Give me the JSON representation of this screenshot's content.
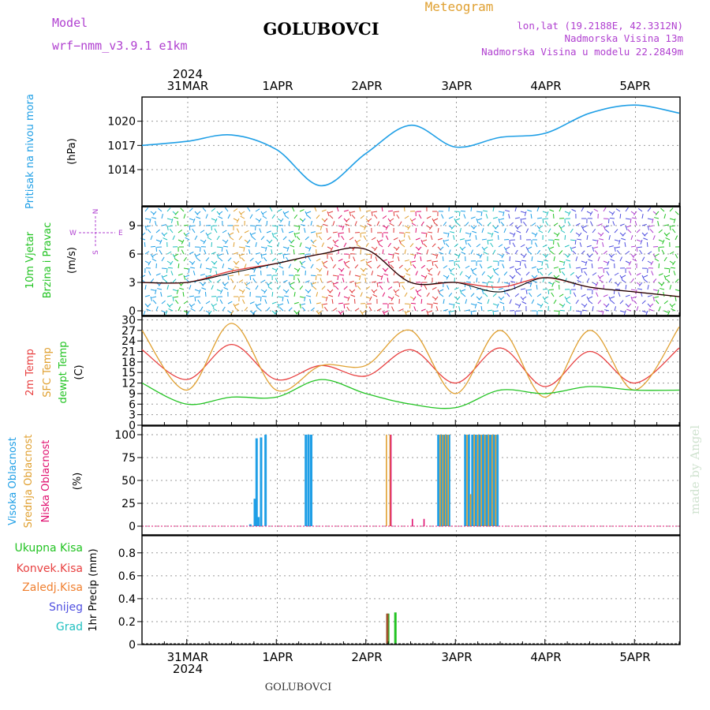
{
  "header": {
    "model_label": "Model",
    "model_name": "wrf−nmm_v3.9.1  e1km",
    "station": "GOLUBOVCI",
    "meteogram": "Meteogram",
    "lonlat": "lon,lat (19.2188E, 42.3312N)",
    "elev": "Nadmorska Visina 13m",
    "elev_model": "Nadmorska Visina u modelu 22.2849m",
    "footer_station": "GOLUBOVCI",
    "watermark": "made by Angel"
  },
  "time_axis": {
    "year": "2024",
    "top_labels": [
      "31MAR",
      "1APR",
      "2APR",
      "3APR",
      "4APR",
      "5APR"
    ],
    "bottom_labels": [
      "31MAR",
      "1APR",
      "2APR",
      "3APR",
      "4APR",
      "5APR"
    ],
    "bottom_year": "2024"
  },
  "colors": {
    "pressure": "#1f9fe6",
    "wind_label": "#22c322",
    "wind_speed": "#000000",
    "wind_gust": "#e03c3c",
    "t2m": "#e84040",
    "sfc": "#e0a030",
    "dewpt": "#22c322",
    "high_cloud": "#1f9fe6",
    "mid_cloud": "#e0a030",
    "low_cloud": "#e01070",
    "rain_total": "#22c322",
    "rain_conv": "#e84040",
    "rain_frz": "#f08030",
    "snow": "#5050e0",
    "hail": "#20c0c0",
    "model_text": "#b040d0",
    "grid": "#9a9a9a"
  },
  "compass": {
    "n": "N",
    "s": "S",
    "e": "E",
    "w": "W"
  },
  "chart_data": [
    {
      "type": "line",
      "title": "",
      "ylabel_main": "Pritisak na nivou mora",
      "ylabel_unit": "(hPa)",
      "yticks": [
        "1020",
        "1017",
        "1014"
      ],
      "ylim": [
        1009.5,
        1023.0
      ],
      "x_days": [
        0.0,
        0.5,
        1.0,
        1.5,
        2.0,
        2.5,
        3.0,
        3.5,
        4.0,
        4.5,
        5.0,
        5.5,
        6.0
      ],
      "series": [
        {
          "values": [
            1017.0,
            1017.5,
            1018.3,
            1016.5,
            1012.0,
            1016.0,
            1019.5,
            1016.8,
            1018.0,
            1018.5,
            1021.0,
            1022.0,
            1021.0
          ]
        }
      ]
    },
    {
      "type": "line",
      "title": "",
      "ylabel_main": "10m Vjetar",
      "ylabel_sub": "Brzina i Pravac",
      "ylabel_unit": "(m/s)",
      "yticks": [
        "9",
        "6",
        "3",
        "0"
      ],
      "ylim": [
        -0.5,
        11.0
      ],
      "x_days": [
        0.0,
        0.5,
        1.0,
        1.5,
        2.0,
        2.5,
        3.0,
        3.5,
        4.0,
        4.5,
        5.0,
        5.5,
        6.0
      ],
      "series": [
        {
          "name": "speed",
          "values": [
            3.0,
            3.0,
            4.0,
            5.0,
            6.0,
            6.5,
            3.0,
            3.0,
            2.0,
            3.5,
            2.5,
            2.0,
            1.5
          ]
        },
        {
          "name": "gust",
          "values": [
            3.0,
            3.0,
            4.2,
            5.0,
            6.0,
            6.5,
            3.0,
            3.0,
            2.5,
            3.5,
            2.5,
            2.0,
            1.5
          ]
        }
      ]
    },
    {
      "type": "line",
      "title": "",
      "ylabel_a": "2m Temp",
      "ylabel_b": "SFC Temp",
      "ylabel_c": "dewpt Temp",
      "ylabel_unit": "(C)",
      "yticks": [
        "30",
        "27",
        "24",
        "21",
        "18",
        "15",
        "12",
        "9",
        "6",
        "3",
        "0"
      ],
      "ylim": [
        0,
        31
      ],
      "x_days": [
        0.0,
        0.5,
        1.0,
        1.5,
        2.0,
        2.5,
        3.0,
        3.5,
        4.0,
        4.5,
        5.0,
        5.5,
        6.0
      ],
      "series": [
        {
          "name": "2m Temp",
          "values": [
            21.5,
            13.0,
            23.0,
            13.0,
            17.0,
            14.0,
            21.5,
            12.0,
            22.0,
            11.0,
            21.0,
            12.0,
            22.0
          ]
        },
        {
          "name": "SFC Temp",
          "values": [
            27.0,
            10.0,
            29.0,
            10.0,
            17.0,
            17.0,
            27.0,
            9.0,
            27.0,
            8.0,
            27.0,
            10.0,
            28.0
          ]
        },
        {
          "name": "dewpt Temp",
          "values": [
            12.0,
            6.0,
            8.0,
            8.0,
            13.0,
            9.0,
            6.0,
            5.0,
            10.0,
            9.0,
            11.0,
            10.0,
            10.0
          ]
        }
      ]
    },
    {
      "type": "bar",
      "title": "",
      "ylabel_a": "Visoka Oblacnost",
      "ylabel_b": "Srednja Oblacnost",
      "ylabel_c": "Niska Oblacnost",
      "ylabel_unit": "(%)",
      "yticks": [
        "100",
        "75",
        "50",
        "25",
        "0"
      ],
      "ylim": [
        0,
        100
      ],
      "series": [
        {
          "name": "Visoka Oblacnost",
          "x_days": [
            1.21,
            1.26,
            1.28,
            1.3,
            1.33,
            1.38,
            1.83,
            1.86,
            1.89,
            3.31,
            3.34,
            3.37,
            3.4,
            3.43,
            3.61,
            3.65,
            3.69,
            3.73,
            3.77,
            3.81,
            3.85,
            3.89,
            3.93,
            3.97
          ],
          "values": [
            2,
            30,
            96,
            10,
            97,
            100,
            100,
            100,
            100,
            100,
            100,
            100,
            100,
            100,
            100,
            100,
            100,
            100,
            100,
            100,
            100,
            100,
            100,
            100
          ]
        },
        {
          "name": "Srednja Oblacnost",
          "x_days": [
            2.73,
            2.77,
            3.33,
            3.36,
            3.39,
            3.42,
            3.63,
            3.67,
            3.71,
            3.75,
            3.79,
            3.83,
            3.87,
            3.91,
            3.95
          ],
          "values": [
            100,
            100,
            100,
            100,
            100,
            100,
            100,
            35,
            100,
            100,
            100,
            100,
            100,
            100,
            100
          ]
        },
        {
          "name": "Niska Oblacnost",
          "x_days": [
            2.78,
            3.02,
            3.15
          ],
          "values": [
            100,
            8,
            8
          ]
        }
      ]
    },
    {
      "type": "bar",
      "title": "",
      "legend": [
        "Ukupna Kisa",
        "Konvek.Kisa",
        "Zaledj.Kisa",
        "Snijeg",
        "Grad"
      ],
      "ylabel_unit": "1hr Precip (mm)",
      "yticks": [
        "0.8",
        "0.6",
        "0.4",
        "0.2",
        "0"
      ],
      "ylim": [
        0,
        0.95
      ],
      "series": [
        {
          "name": "Ukupna Kisa",
          "x_days": [
            2.75,
            2.83
          ],
          "values": [
            0.27,
            0.28
          ]
        },
        {
          "name": "Konvek.Kisa",
          "x_days": [
            2.74
          ],
          "values": [
            0.27
          ]
        }
      ]
    }
  ]
}
